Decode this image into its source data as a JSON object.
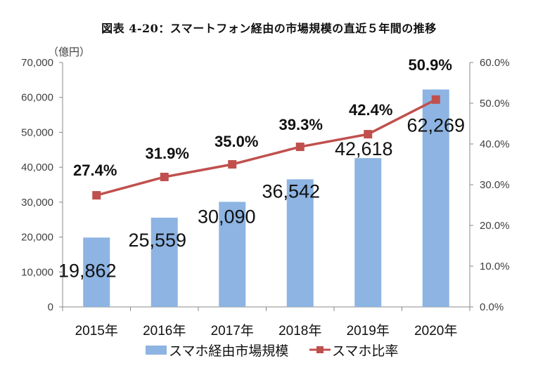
{
  "title": "図表 4-20：スマートフォン経由の市場規模の直近５年間の推移",
  "chart_data": {
    "type": "bar+line",
    "title": "図表 4-20：スマートフォン経由の市場規模の直近５年間の推移",
    "categories": [
      "2015年",
      "2016年",
      "2017年",
      "2018年",
      "2019年",
      "2020年"
    ],
    "y_unit_label": "（億円）",
    "ylim_left": [
      0,
      70000
    ],
    "yticks_left": [
      "0",
      "10,000",
      "20,000",
      "30,000",
      "40,000",
      "50,000",
      "60,000",
      "70,000"
    ],
    "ylim_right": [
      0,
      60
    ],
    "yticks_right": [
      "0.0%",
      "10.0%",
      "20.0%",
      "30.0%",
      "40.0%",
      "50.0%",
      "60.0%"
    ],
    "grid": false,
    "legend_position": "bottom",
    "series": [
      {
        "name": "スマホ経由市場規模",
        "type": "bar",
        "axis": "left",
        "color": "#8db4e2",
        "values": [
          19862,
          25559,
          30090,
          36542,
          42618,
          62269
        ],
        "labels": [
          "19,862",
          "25,559",
          "30,090",
          "36,542",
          "42,618",
          "62,269"
        ]
      },
      {
        "name": "スマホ比率",
        "type": "line",
        "axis": "right",
        "color": "#c0504d",
        "values": [
          27.4,
          31.9,
          35.0,
          39.3,
          42.4,
          50.9
        ],
        "labels": [
          "27.4%",
          "31.9%",
          "35.0%",
          "39.3%",
          "42.4%",
          "50.9%"
        ]
      }
    ]
  }
}
